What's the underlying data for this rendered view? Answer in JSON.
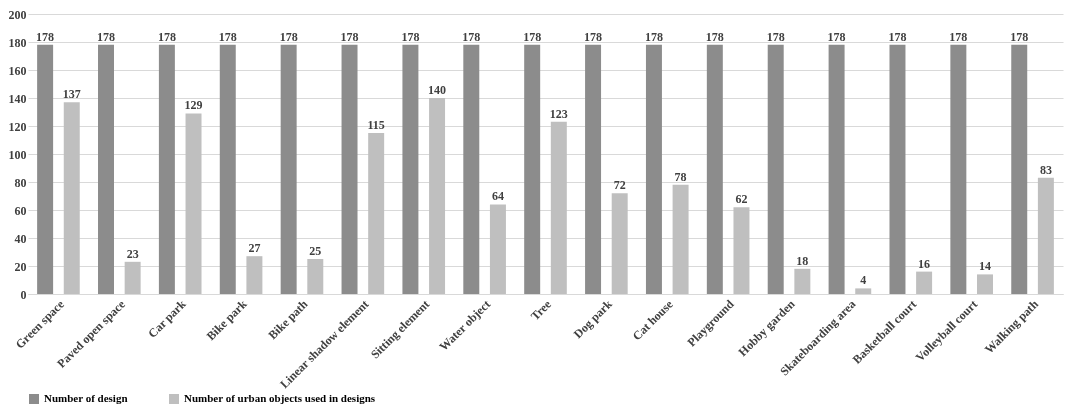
{
  "chart_data": {
    "type": "bar",
    "categories": [
      "Green space",
      "Paved open space",
      "Car park",
      "Bike park",
      "Bike path",
      "Linear shadow element",
      "Sitting element",
      "Water object",
      "Tree",
      "Dog park",
      "Cat house",
      "Playground",
      "Hobby garden",
      "Skateboarding area",
      "Basketball court",
      "Volleyball court",
      "Walking path"
    ],
    "series": [
      {
        "name": "Number of design",
        "color": "#8c8c8c",
        "values": [
          178,
          178,
          178,
          178,
          178,
          178,
          178,
          178,
          178,
          178,
          178,
          178,
          178,
          178,
          178,
          178,
          178
        ]
      },
      {
        "name": "Number of urban objects used in designs",
        "color": "#bfbfbf",
        "values": [
          137,
          23,
          129,
          27,
          25,
          115,
          140,
          64,
          123,
          72,
          78,
          62,
          18,
          4,
          16,
          14,
          83
        ]
      }
    ],
    "ylim": [
      0,
      200
    ],
    "yticks": [
      0,
      20,
      40,
      60,
      80,
      100,
      120,
      140,
      160,
      180,
      200
    ],
    "grid": "y",
    "legend": "bottom",
    "data_labels": true
  }
}
